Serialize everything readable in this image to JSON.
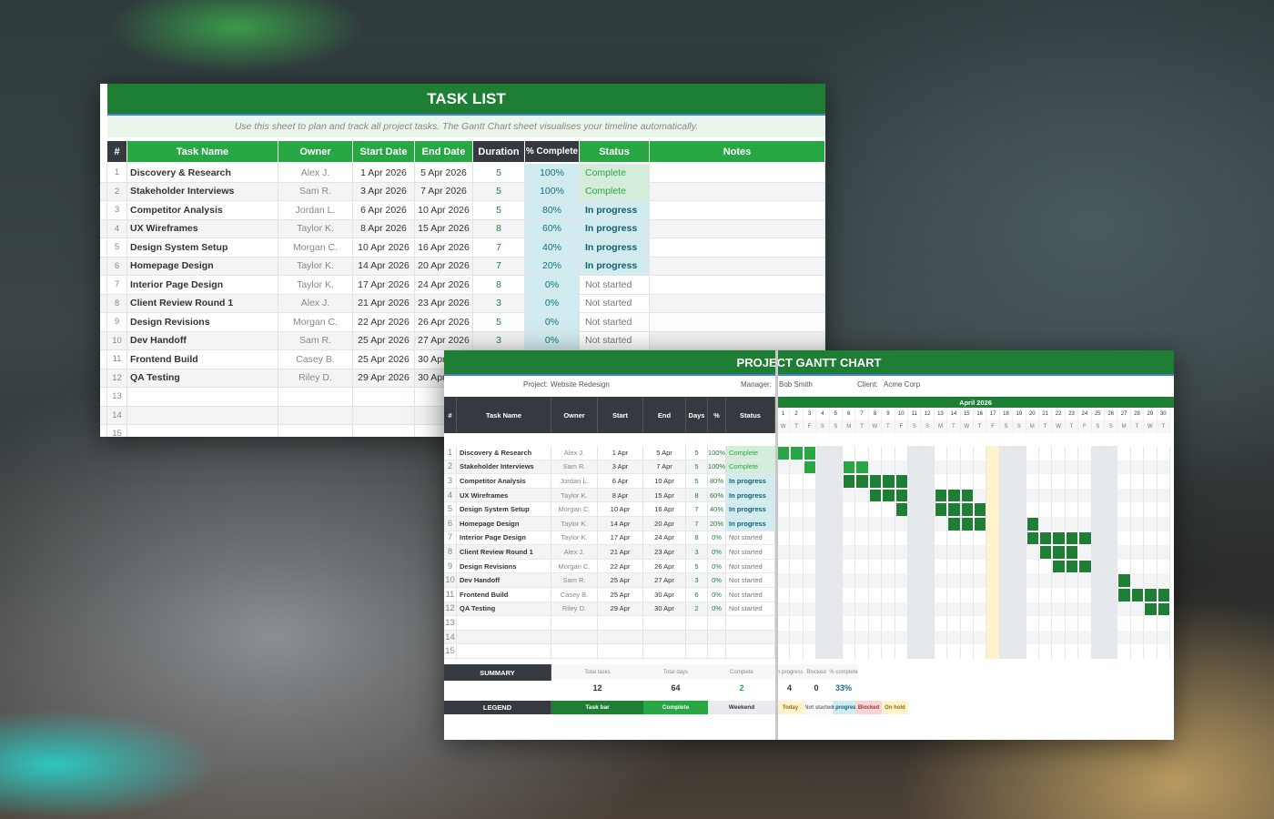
{
  "task_list": {
    "title": "TASK LIST",
    "subtitle": "Use this sheet to plan and track all project tasks. The Gantt Chart sheet visualises your timeline automatically.",
    "columns": [
      "#",
      "Task Name",
      "Owner",
      "Start Date",
      "End Date",
      "Duration",
      "% Complete",
      "Status",
      "Notes"
    ],
    "rows": [
      {
        "n": "1",
        "name": "Discovery & Research",
        "owner": "Alex J.",
        "start": "1 Apr 2026",
        "end": "5 Apr 2026",
        "dur": "5",
        "pct": "100%",
        "status": "Complete"
      },
      {
        "n": "2",
        "name": "Stakeholder Interviews",
        "owner": "Sam R.",
        "start": "3 Apr 2026",
        "end": "7 Apr 2026",
        "dur": "5",
        "pct": "100%",
        "status": "Complete"
      },
      {
        "n": "3",
        "name": "Competitor Analysis",
        "owner": "Jordan L.",
        "start": "6 Apr 2026",
        "end": "10 Apr 2026",
        "dur": "5",
        "pct": "80%",
        "status": "In progress"
      },
      {
        "n": "4",
        "name": "UX Wireframes",
        "owner": "Taylor K.",
        "start": "8 Apr 2026",
        "end": "15 Apr 2026",
        "dur": "8",
        "pct": "60%",
        "status": "In progress"
      },
      {
        "n": "5",
        "name": "Design System Setup",
        "owner": "Morgan C.",
        "start": "10 Apr 2026",
        "end": "16 Apr 2026",
        "dur": "7",
        "pct": "40%",
        "status": "In progress"
      },
      {
        "n": "6",
        "name": "Homepage Design",
        "owner": "Taylor K.",
        "start": "14 Apr 2026",
        "end": "20 Apr 2026",
        "dur": "7",
        "pct": "20%",
        "status": "In progress"
      },
      {
        "n": "7",
        "name": "Interior Page Design",
        "owner": "Taylor K.",
        "start": "17 Apr 2026",
        "end": "24 Apr 2026",
        "dur": "8",
        "pct": "0%",
        "status": "Not started"
      },
      {
        "n": "8",
        "name": "Client Review Round 1",
        "owner": "Alex J.",
        "start": "21 Apr 2026",
        "end": "23 Apr 2026",
        "dur": "3",
        "pct": "0%",
        "status": "Not started"
      },
      {
        "n": "9",
        "name": "Design Revisions",
        "owner": "Morgan C.",
        "start": "22 Apr 2026",
        "end": "26 Apr 2026",
        "dur": "5",
        "pct": "0%",
        "status": "Not started"
      },
      {
        "n": "10",
        "name": "Dev Handoff",
        "owner": "Sam R.",
        "start": "25 Apr 2026",
        "end": "27 Apr 2026",
        "dur": "3",
        "pct": "0%",
        "status": "Not started"
      },
      {
        "n": "11",
        "name": "Frontend Build",
        "owner": "Casey B.",
        "start": "25 Apr 2026",
        "end": "30 Apr 2026",
        "dur": "",
        "pct": "",
        "status": ""
      },
      {
        "n": "12",
        "name": "QA Testing",
        "owner": "Riley D.",
        "start": "29 Apr 2026",
        "end": "30 Apr 2026",
        "dur": "",
        "pct": "",
        "status": ""
      },
      {
        "n": "13"
      },
      {
        "n": "14"
      },
      {
        "n": "15"
      }
    ]
  },
  "gantt": {
    "title": "PROJECT GANTT CHART",
    "project_label": "Project:",
    "project": "Website Redesign",
    "manager_label": "Manager:",
    "manager": "Bob Smith",
    "client_label": "Client:",
    "client": "Acme Corp",
    "columns": [
      "#",
      "Task Name",
      "Owner",
      "Start",
      "End",
      "Days",
      "%",
      "Status"
    ],
    "month": "April 2026",
    "weekdays": [
      "W",
      "T",
      "F",
      "S",
      "S",
      "M",
      "T",
      "W",
      "T",
      "F",
      "S",
      "S",
      "M",
      "T",
      "W",
      "T",
      "F",
      "S",
      "S",
      "M",
      "T",
      "W",
      "T",
      "F",
      "S",
      "S",
      "M",
      "T",
      "W",
      "T"
    ],
    "weekend_days": [
      4,
      5,
      11,
      12,
      18,
      19,
      25,
      26
    ],
    "today_day": 17,
    "rows": [
      {
        "n": "1",
        "name": "Discovery & Research",
        "owner": "Alex J.",
        "start": "1 Apr",
        "end": "5 Apr",
        "days": "5",
        "pct": "100%",
        "status": "Complete",
        "filled": [
          1,
          2,
          3
        ],
        "kind": "complete"
      },
      {
        "n": "2",
        "name": "Stakeholder Interviews",
        "owner": "Sam R.",
        "start": "3 Apr",
        "end": "7 Apr",
        "days": "5",
        "pct": "100%",
        "status": "Complete",
        "filled": [
          3,
          6,
          7
        ],
        "kind": "complete"
      },
      {
        "n": "3",
        "name": "Competitor Analysis",
        "owner": "Jordan L.",
        "start": "6 Apr",
        "end": "10 Apr",
        "days": "5",
        "pct": "80%",
        "status": "In progress",
        "filled": [
          6,
          7,
          8,
          9,
          10
        ],
        "kind": "task"
      },
      {
        "n": "4",
        "name": "UX Wireframes",
        "owner": "Taylor K.",
        "start": "8 Apr",
        "end": "15 Apr",
        "days": "8",
        "pct": "60%",
        "status": "In progress",
        "filled": [
          8,
          9,
          10,
          13,
          14,
          15
        ],
        "kind": "task"
      },
      {
        "n": "5",
        "name": "Design System Setup",
        "owner": "Morgan C.",
        "start": "10 Apr",
        "end": "16 Apr",
        "days": "7",
        "pct": "40%",
        "status": "In progress",
        "filled": [
          10,
          13,
          14,
          15,
          16
        ],
        "kind": "task"
      },
      {
        "n": "6",
        "name": "Homepage Design",
        "owner": "Taylor K.",
        "start": "14 Apr",
        "end": "20 Apr",
        "days": "7",
        "pct": "20%",
        "status": "In progress",
        "filled": [
          14,
          15,
          16,
          20
        ],
        "kind": "task"
      },
      {
        "n": "7",
        "name": "Interior Page Design",
        "owner": "Taylor K.",
        "start": "17 Apr",
        "end": "24 Apr",
        "days": "8",
        "pct": "0%",
        "status": "Not started",
        "filled": [
          20,
          21,
          22,
          23,
          24
        ],
        "kind": "task"
      },
      {
        "n": "8",
        "name": "Client Review Round 1",
        "owner": "Alex J.",
        "start": "21 Apr",
        "end": "23 Apr",
        "days": "3",
        "pct": "0%",
        "status": "Not started",
        "filled": [
          21,
          22,
          23
        ],
        "kind": "task"
      },
      {
        "n": "9",
        "name": "Design Revisions",
        "owner": "Morgan C.",
        "start": "22 Apr",
        "end": "26 Apr",
        "days": "5",
        "pct": "0%",
        "status": "Not started",
        "filled": [
          22,
          23,
          24
        ],
        "kind": "task"
      },
      {
        "n": "10",
        "name": "Dev Handoff",
        "owner": "Sam R.",
        "start": "25 Apr",
        "end": "27 Apr",
        "days": "3",
        "pct": "0%",
        "status": "Not started",
        "filled": [
          27
        ],
        "kind": "task"
      },
      {
        "n": "11",
        "name": "Frontend Build",
        "owner": "Casey B.",
        "start": "25 Apr",
        "end": "30 Apr",
        "days": "6",
        "pct": "0%",
        "status": "Not started",
        "filled": [
          27,
          28,
          29,
          30
        ],
        "kind": "task"
      },
      {
        "n": "12",
        "name": "QA Testing",
        "owner": "Riley D.",
        "start": "29 Apr",
        "end": "30 Apr",
        "days": "2",
        "pct": "0%",
        "status": "Not started",
        "filled": [
          29,
          30
        ],
        "kind": "task"
      },
      {
        "n": "13"
      },
      {
        "n": "14"
      },
      {
        "n": "15"
      }
    ],
    "summary": {
      "label": "SUMMARY",
      "items": [
        {
          "label": "Total tasks",
          "value": "12"
        },
        {
          "label": "Total days",
          "value": "64"
        },
        {
          "label": "Complete",
          "value": "2"
        },
        {
          "label": "In progress",
          "value": "4"
        },
        {
          "label": "Blocked",
          "value": "0"
        },
        {
          "label": "% complete",
          "value": "33%"
        }
      ]
    },
    "legend": {
      "label": "LEGEND",
      "items": [
        {
          "label": "Task bar",
          "bg": "#1e7e34",
          "fg": "#ffffff"
        },
        {
          "label": "Complete",
          "bg": "#28a745",
          "fg": "#ffffff"
        },
        {
          "label": "Weekend",
          "bg": "#e9ecef",
          "fg": "#333333"
        },
        {
          "label": "Today",
          "bg": "#fff3cd",
          "fg": "#8a6d1f"
        },
        {
          "label": "Not started",
          "bg": "#f8f9fa",
          "fg": "#777777"
        },
        {
          "label": "In progress",
          "bg": "#d1ecf1",
          "fg": "#155f6d"
        },
        {
          "label": "Blocked",
          "bg": "#f5d5d5",
          "fg": "#a33"
        },
        {
          "label": "On hold",
          "bg": "#fff3cd",
          "fg": "#9a6b00"
        }
      ]
    }
  },
  "colors": {
    "brand_green": "#1e7e34",
    "header_green": "#28a745",
    "dark_header": "#343a40",
    "weekend": "#e9ecef",
    "today": "#fff3cd"
  }
}
